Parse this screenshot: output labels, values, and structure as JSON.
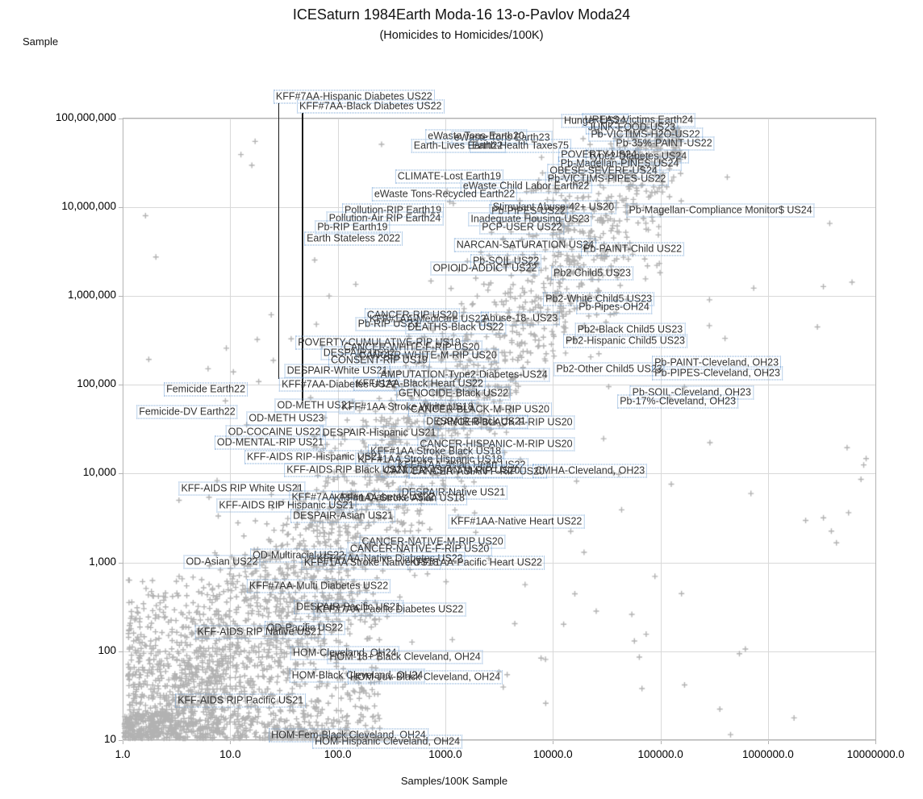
{
  "title": "ICESaturn 1984Earth Moda-16 13-o-Pavlov Moda24",
  "subtitle": "(Homicides to Homicides/100K)",
  "chart_data": {
    "type": "scatter",
    "title": "ICESaturn 1984Earth Moda-16 13-o-Pavlov Moda24",
    "subtitle": "(Homicides to Homicides/100K)",
    "xlabel": "Samples/100K Sample",
    "ylabel": "Sample",
    "x_scale": "log",
    "y_scale": "log",
    "xlim": [
      1.0,
      10000000.0
    ],
    "ylim": [
      10,
      100000000
    ],
    "grid": true,
    "x_tick_labels": [
      "1.0",
      "10.0",
      "100.0",
      "1000.0",
      "10000.0",
      "100000.0",
      "1000000.0",
      "10000000.0"
    ],
    "x_tick_values": [
      1,
      10,
      100,
      1000,
      10000,
      100000,
      1000000,
      10000000
    ],
    "y_tick_labels": [
      "100,000,000",
      "10,000,000",
      "1,000,000",
      "100,000",
      "10,000",
      "1,000",
      "100",
      "10"
    ],
    "y_tick_values": [
      100000000,
      10000000,
      1000000,
      100000,
      10000,
      1000,
      100,
      10
    ],
    "marker": {
      "glyph": "plus-cross",
      "color": "#b2b2b2"
    },
    "label_border_color": "#73a2d4",
    "label_text_color": "#333333",
    "callouts": [
      {
        "label": "KFF#7AA-Hispanic Diabetes US22",
        "x": 28,
        "y_point": 116000,
        "y_label": 175000000
      },
      {
        "label": "KFF#7AA-Black Diabetes US22",
        "x": 46.3,
        "y_point": 66100,
        "y_label": 135000000
      }
    ],
    "labeled_points": [
      {
        "label": "eWaste Tons-Earth20",
        "x": 1930,
        "y": 62000000
      },
      {
        "label": "eWaste Tons Earth23",
        "x": 3360,
        "y": 60000000
      },
      {
        "label": "Earth-Lives Earth22",
        "x": 1320,
        "y": 49000000
      },
      {
        "label": "Earth-Health Taxes75",
        "x": 4990,
        "y": 49000000
      },
      {
        "label": "UREAS-Victims Earth24",
        "x": 63100,
        "y": 95000000
      },
      {
        "label": "Hunger-US24",
        "x": 24500,
        "y": 93000000
      },
      {
        "label": "JUNK-FOOD-US23",
        "x": 54000,
        "y": 79000000
      },
      {
        "label": "Pb-VICTIMS-H2O-US22",
        "x": 72600,
        "y": 65000000
      },
      {
        "label": "Pb-35%-PAINT-US22",
        "x": 108000,
        "y": 52000000
      },
      {
        "label": "POVERTY-US24",
        "x": 26700,
        "y": 39000000
      },
      {
        "label": "Type2-Diabetes US24",
        "x": 61100,
        "y": 37000000
      },
      {
        "label": "Pb-Magellan-PINES US24",
        "x": 41800,
        "y": 31000000
      },
      {
        "label": "OBESE-SEVERE-US24",
        "x": 29600,
        "y": 25500000
      },
      {
        "label": "Pb-VICTIMS-PIPES-US22",
        "x": 31700,
        "y": 20700000
      },
      {
        "label": "CLIMATE-Lost Earth19",
        "x": 1090,
        "y": 22000000
      },
      {
        "label": "eWaste Child Labor Earth22",
        "x": 5640,
        "y": 17100000
      },
      {
        "label": "eWaste Tons-Recycled Earth22",
        "x": 984,
        "y": 13900000
      },
      {
        "label": "Pollution-RIP Earth19",
        "x": 326,
        "y": 9200000
      },
      {
        "label": "Stimulant Abuse-42+ US20",
        "x": 10100,
        "y": 9950000
      },
      {
        "label": "Pb-PIPES-US22",
        "x": 5930,
        "y": 9000000
      },
      {
        "label": "Pb-Magellan-Compliance Monitor$ US24",
        "x": 362000,
        "y": 9200000
      },
      {
        "label": "Pollution-Air RIP Earth24",
        "x": 274,
        "y": 7400000
      },
      {
        "label": "Inadequate Housing-US23",
        "x": 6140,
        "y": 7300000
      },
      {
        "label": "Pb-RIP Earth19",
        "x": 137,
        "y": 5900000
      },
      {
        "label": "PCP-USER US22",
        "x": 5160,
        "y": 5900000
      },
      {
        "label": "Earth Stateless 2022",
        "x": 140,
        "y": 4400000
      },
      {
        "label": "NARCAN-SATURATION US24",
        "x": 5530,
        "y": 3700000
      },
      {
        "label": "Pb-PAINT-Child US22",
        "x": 55100,
        "y": 3360000
      },
      {
        "label": "Pb-SOIL US22",
        "x": 3660,
        "y": 2450000
      },
      {
        "label": "OPIOID-ADDICT US22",
        "x": 2330,
        "y": 2040000
      },
      {
        "label": "Pb2 Child5 US23",
        "x": 23200,
        "y": 1790000
      },
      {
        "label": "Pb2-White Child5 US23",
        "x": 26700,
        "y": 920000
      },
      {
        "label": "Pb-Pipes-OH24",
        "x": 37000,
        "y": 750000
      },
      {
        "label": "CANCER-RIP US20",
        "x": 493,
        "y": 605000
      },
      {
        "label": "KFF#1AA-Medicare US22",
        "x": 686,
        "y": 545000
      },
      {
        "label": "Abuse-18- US23",
        "x": 4990,
        "y": 560000
      },
      {
        "label": "Pb-RIP US23",
        "x": 294,
        "y": 480000
      },
      {
        "label": "DEATHS-Black US22",
        "x": 1250,
        "y": 440000
      },
      {
        "label": "Pb2-Black Child5 US23",
        "x": 52200,
        "y": 416000
      },
      {
        "label": "POVERTY-CUMULATIVE-RIP US19",
        "x": 243,
        "y": 298000
      },
      {
        "label": "Pb2-Hispanic Child5 US23",
        "x": 47100,
        "y": 310000
      },
      {
        "label": "CANCER-WHITE-F-RIP US20",
        "x": 485,
        "y": 262000
      },
      {
        "label": "DESPAIR US22",
        "x": 158,
        "y": 227000
      },
      {
        "label": "CANCER-WHITE-M-RIP US20",
        "x": 686,
        "y": 213000
      },
      {
        "label": "CONSENT-RIP US19",
        "x": 243,
        "y": 188000
      },
      {
        "label": "DESPAIR-White US21",
        "x": 99,
        "y": 143000
      },
      {
        "label": "AMPUTATION-Type2-Diabetes-US24",
        "x": 1490,
        "y": 129000
      },
      {
        "label": "Pb2-Other Child5 US23",
        "x": 33400,
        "y": 149000
      },
      {
        "label": "Pb-PAINT-Cleveland, OH23",
        "x": 332000,
        "y": 177000
      },
      {
        "label": "Pb-PIPES-Cleveland, OH23",
        "x": 338000,
        "y": 135000
      },
      {
        "label": "Femicide Earth22",
        "x": 5.93,
        "y": 88500
      },
      {
        "label": "KFF#7AA-Diabetes US22",
        "x": 103,
        "y": 100000
      },
      {
        "label": "KFF#1AA-Black Heart US22",
        "x": 577,
        "y": 103000
      },
      {
        "label": "GENOCIDE-Black US22",
        "x": 1190,
        "y": 79800
      },
      {
        "label": "Pb-SOIL-Cleveland, OH23",
        "x": 195000,
        "y": 81500
      },
      {
        "label": "Pb-17%-Cleveland, OH23",
        "x": 145000,
        "y": 64700
      },
      {
        "label": "Femicide-DV Earth22",
        "x": 3.98,
        "y": 49300
      },
      {
        "label": "OD-METH US21",
        "x": 61,
        "y": 58300
      },
      {
        "label": "KFF#1AA Stroke White US18",
        "x": 445,
        "y": 56000
      },
      {
        "label": "CANCER-BLACK-M-RIP US20",
        "x": 2100,
        "y": 52500
      },
      {
        "label": "OD-METH US23",
        "x": 33.3,
        "y": 41700
      },
      {
        "label": "DESPAIR-Black US21",
        "x": 1930,
        "y": 38400
      },
      {
        "label": "CANCER-BLACK-F-RIP US20",
        "x": 3530,
        "y": 37600
      },
      {
        "label": "OD-COCAINE US22",
        "x": 25.7,
        "y": 29200
      },
      {
        "label": "DESPAIR-Hispanic US21",
        "x": 243,
        "y": 28600
      },
      {
        "label": "OD-MENTAL-RIP US21",
        "x": 23.6,
        "y": 22300
      },
      {
        "label": "CANCER-HISPANIC-M-RIP US20",
        "x": 2970,
        "y": 21400
      },
      {
        "label": "KFF#1AA Stroke Black US18",
        "x": 815,
        "y": 17700
      },
      {
        "label": "KFF-AIDS RIP-Hispanic US21",
        "x": 61,
        "y": 15300
      },
      {
        "label": "KFF#1AA Stroke Hispanic US18",
        "x": 721,
        "y": 14400
      },
      {
        "label": "KFF#1AA-Asian Heart US22",
        "x": 1420,
        "y": 12400
      },
      {
        "label": "KFF-AIDS RIP Black US21",
        "x": 122,
        "y": 10970
      },
      {
        "label": "CANCER-ASIAN-M-RIP US20",
        "x": 1150,
        "y": 10700
      },
      {
        "label": "CANCER-ASIAN-F-RIP US20",
        "x": 2000,
        "y": 10500
      },
      {
        "label": "CMHA-Cleveland, OH23",
        "x": 22100,
        "y": 10700
      },
      {
        "label": "KFF-AIDS RIP White US21",
        "x": 12.9,
        "y": 6780
      },
      {
        "label": "DESPAIR-Native US21",
        "x": 1190,
        "y": 6110
      },
      {
        "label": "KFF#7AA-Asian Diabetes US22",
        "x": 172,
        "y": 5380
      },
      {
        "label": "KFF#1AA Stroke Asian US18",
        "x": 374,
        "y": 5270
      },
      {
        "label": "KFF-AIDS RIP Hispanic US21",
        "x": 33.3,
        "y": 4370
      },
      {
        "label": "DESPAIR-Asian US21",
        "x": 112,
        "y": 3330
      },
      {
        "label": "KFF#1AA-Native Heart US22",
        "x": 4580,
        "y": 2880
      },
      {
        "label": "CANCER-NATIVE-M-RIP US20",
        "x": 760,
        "y": 1710
      },
      {
        "label": "CANCER-NATIVE-F-RIP US20",
        "x": 577,
        "y": 1420
      },
      {
        "label": "OD-Multiracial US22",
        "x": 43.2,
        "y": 1200
      },
      {
        "label": "KFF#7AA-Native Diabetes US22",
        "x": 304,
        "y": 1100
      },
      {
        "label": "OD-Asian US22",
        "x": 8.37,
        "y": 1010
      },
      {
        "label": "KFF#1AA Stroke Native US18",
        "x": 205,
        "y": 990
      },
      {
        "label": "KFF#1AA-Pacific Heart US22",
        "x": 1930,
        "y": 990
      },
      {
        "label": "KFF#7AA-Multi Diabetes US22",
        "x": 66.5,
        "y": 541
      },
      {
        "label": "DESPAIR-Pacific US21",
        "x": 126,
        "y": 314
      },
      {
        "label": "KFF#7AA-Pacific Diabetes US22",
        "x": 304,
        "y": 295
      },
      {
        "label": "OD-Pacific US22",
        "x": 49.5,
        "y": 182
      },
      {
        "label": "KFF-AIDS RIP Native US21",
        "x": 18.8,
        "y": 164
      },
      {
        "label": "HOM-Cleveland, OH24",
        "x": 116,
        "y": 95.5
      },
      {
        "label": "HOM-18+ Black Cleveland, OH24",
        "x": 423,
        "y": 86.1
      },
      {
        "label": "HOM-Black Cleveland, OH24",
        "x": 152,
        "y": 53.2
      },
      {
        "label": "HOM-Juv-Black Cleveland, OH24",
        "x": 650,
        "y": 51.1
      },
      {
        "label": "KFF-AIDS RIP Pacific US21",
        "x": 12.5,
        "y": 27.9
      },
      {
        "label": "HOM-Fem-Black Cleveland, OH24",
        "x": 126,
        "y": 11.3
      },
      {
        "label": "HOM-Hispanic Cleveland, OH24",
        "x": 289,
        "y": 9.6
      }
    ],
    "background_points": {
      "description": "Several thousand unlabeled light-gray '+' markers forming a dense diagonal band on the log-log axes, with a very dense cluster in the lower-left (x 1-200, y 10-600) and sparse singles across the right half; individual values not legible.",
      "render": {
        "seed": 7,
        "band_count": 2400,
        "cluster_count": 1100,
        "sparse_count": 140
      }
    }
  },
  "colors": {
    "background": "#ffffff",
    "marker": "#b2b2b2",
    "grid": "#d9d9d9",
    "axis": "#b3b3b3",
    "label_border": "#73a2d4",
    "label_text": "#333333",
    "callout_line": "#1a1a1a"
  }
}
